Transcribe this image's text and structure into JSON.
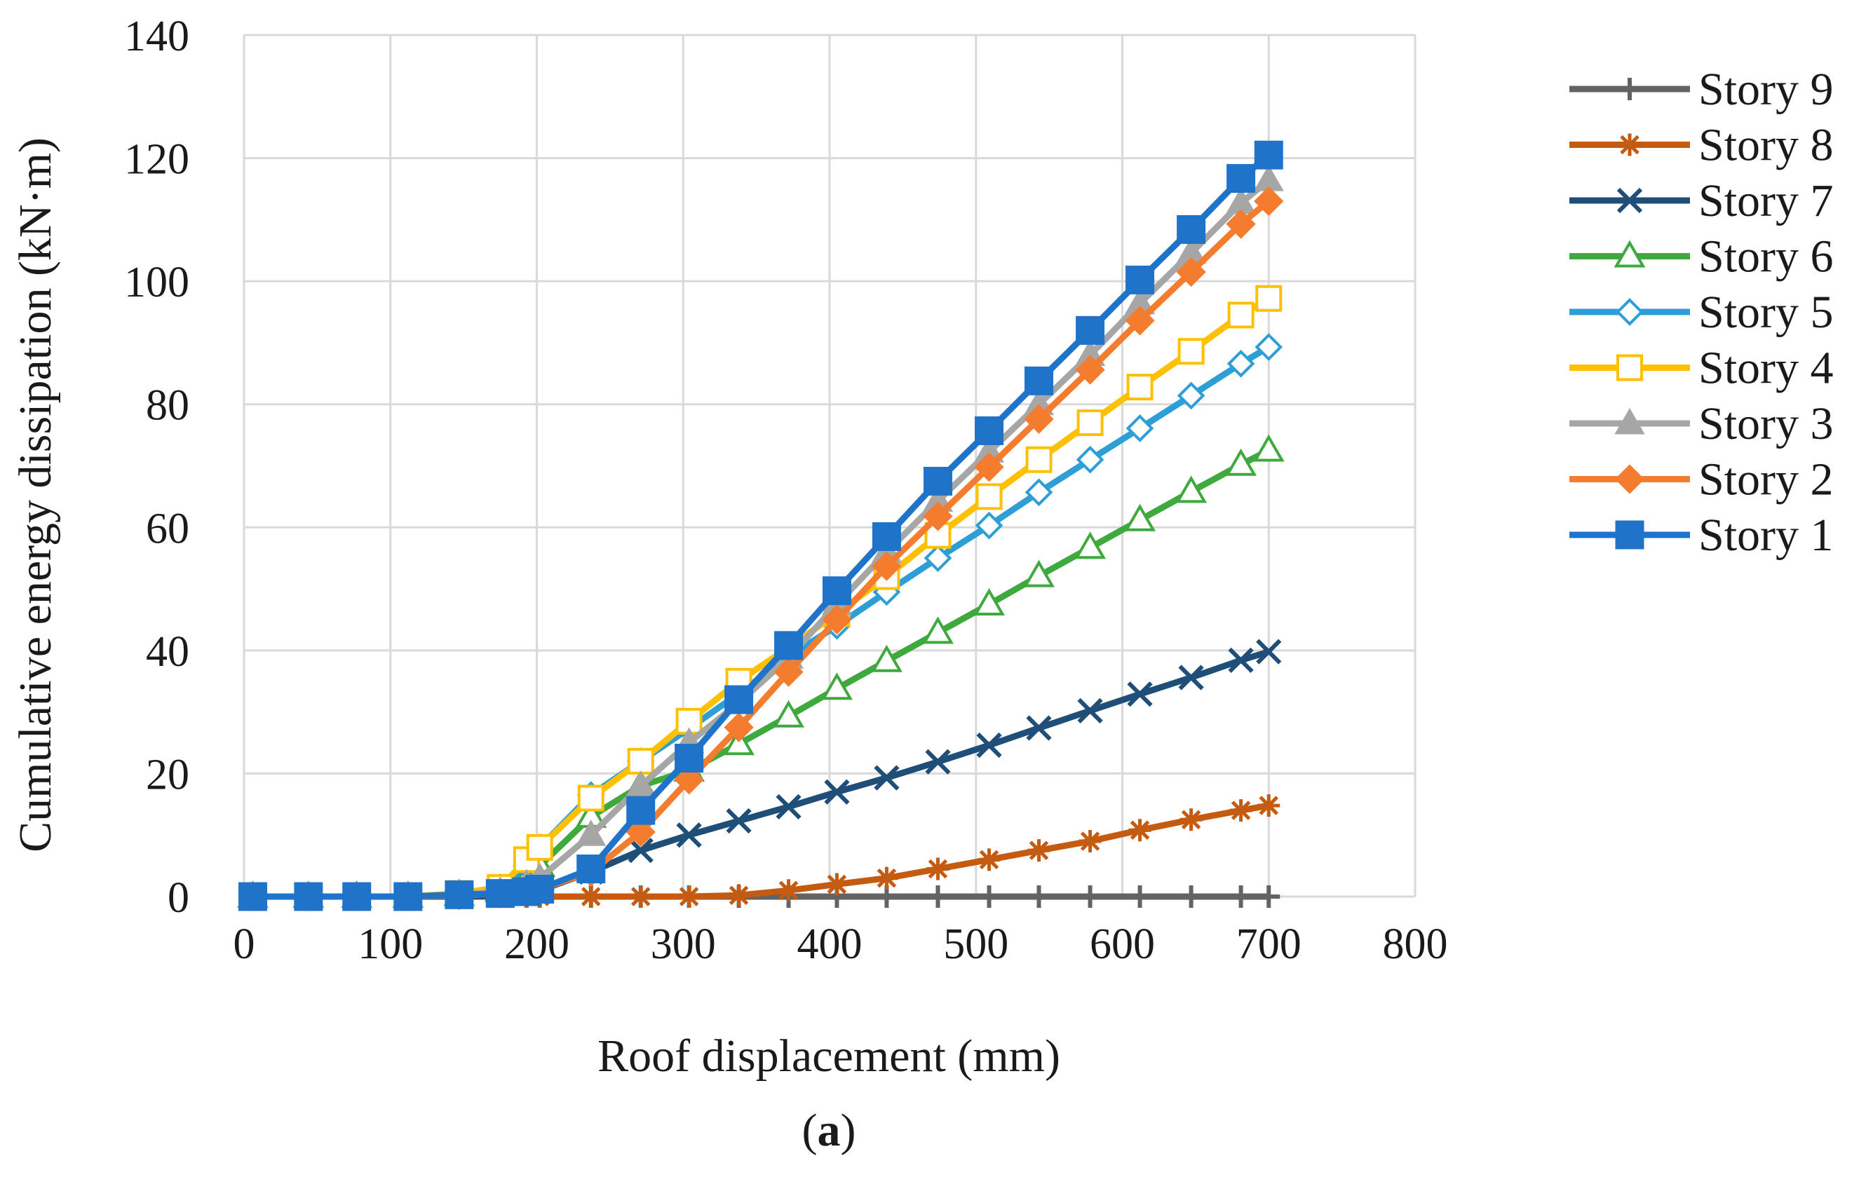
{
  "chart_data": {
    "type": "line",
    "title": "",
    "xlabel": "Roof displacement (mm)",
    "ylabel": "Cumulative energy dissipation (kN·m)",
    "xlim": [
      0,
      800
    ],
    "ylim": [
      0,
      140
    ],
    "xticks": [
      0,
      100,
      200,
      300,
      400,
      500,
      600,
      700,
      800
    ],
    "yticks": [
      0,
      20,
      40,
      60,
      80,
      100,
      120,
      140
    ],
    "grid": true,
    "legend_position": "right",
    "caption_prefix": "(",
    "caption_letter": "a",
    "caption_suffix": ")",
    "x": [
      6,
      44,
      77,
      112,
      147,
      175,
      193,
      202,
      237,
      271,
      304,
      338,
      372,
      405,
      439,
      474,
      509,
      543,
      578,
      612,
      647,
      681,
      700
    ],
    "series": [
      {
        "name": "Story 9",
        "color": "#636363",
        "marker": "plus",
        "values": [
          0,
          0,
          0,
          0,
          0,
          0,
          0,
          0,
          0,
          0,
          0,
          0,
          0,
          0,
          0,
          0,
          0,
          0,
          0,
          0,
          0,
          0,
          0
        ]
      },
      {
        "name": "Story 8",
        "color": "#c55a11",
        "marker": "asterisk",
        "values": [
          0,
          0,
          0,
          0,
          0,
          0,
          0,
          0,
          0,
          0,
          0,
          0.2,
          1,
          2,
          3,
          4.5,
          6,
          7.5,
          9,
          10.8,
          12.5,
          14,
          14.8
        ]
      },
      {
        "name": "Story 7",
        "color": "#1f4e79",
        "marker": "x",
        "values": [
          0,
          0,
          0,
          0,
          0,
          0.2,
          0.5,
          1,
          4,
          7.5,
          10,
          12.3,
          14.6,
          17,
          19.3,
          21.9,
          24.6,
          27.4,
          30.2,
          32.9,
          35.6,
          38.4,
          39.8
        ]
      },
      {
        "name": "Story 6",
        "color": "#3ea93c",
        "marker": "triangle-open",
        "values": [
          0,
          0,
          0,
          0,
          0.3,
          1,
          3,
          5,
          13,
          18,
          20.5,
          24.8,
          29.3,
          33.8,
          38.3,
          42.9,
          47.5,
          52.1,
          56.7,
          61.2,
          65.8,
          70.2,
          72.5
        ]
      },
      {
        "name": "Story 5",
        "color": "#2e9fd6",
        "marker": "diamond-open",
        "values": [
          0,
          0,
          0,
          0,
          0.5,
          1.5,
          5,
          8,
          16.5,
          22,
          27.3,
          33,
          39,
          44,
          49.5,
          55,
          60.3,
          65.7,
          71,
          76.1,
          81.4,
          86.6,
          89.3
        ]
      },
      {
        "name": "Story 4",
        "color": "#ffc000",
        "marker": "square-open",
        "values": [
          0,
          0,
          0,
          0,
          0.5,
          1.5,
          6,
          8,
          16,
          22,
          28.5,
          35,
          40.5,
          46,
          52,
          58.7,
          65,
          71,
          77,
          82.8,
          88.6,
          94.5,
          97.2
        ]
      },
      {
        "name": "Story 3",
        "color": "#a6a6a6",
        "marker": "triangle-filled",
        "values": [
          0,
          0,
          0,
          0,
          0.3,
          0.8,
          2,
          3,
          10,
          18,
          25,
          31.5,
          38.8,
          47.5,
          56,
          64.3,
          72.3,
          80,
          88,
          96.4,
          104.6,
          112.7,
          116.4
        ]
      },
      {
        "name": "Story 2",
        "color": "#f47c2e",
        "marker": "diamond-filled",
        "values": [
          0,
          0,
          0,
          0,
          0.2,
          0.5,
          0.8,
          1.2,
          4,
          10.5,
          19,
          27.5,
          36.5,
          45,
          53.7,
          61.8,
          69.8,
          77.6,
          85.6,
          93.6,
          101.5,
          109.3,
          113
        ]
      },
      {
        "name": "Story 1",
        "color": "#1f73c8",
        "marker": "square-filled",
        "values": [
          0,
          0,
          0,
          0,
          0.3,
          0.5,
          0.8,
          1.2,
          4.5,
          14,
          22.5,
          32,
          40.8,
          49.7,
          58.5,
          67.5,
          75.7,
          83.8,
          92,
          100.2,
          108.4,
          116.7,
          120.5
        ]
      }
    ]
  }
}
